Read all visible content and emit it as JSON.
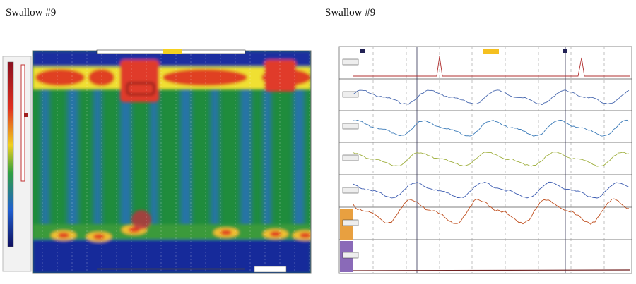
{
  "panels": [
    {
      "title": "Swallow #9"
    },
    {
      "title": "Swallow #9"
    }
  ]
}
